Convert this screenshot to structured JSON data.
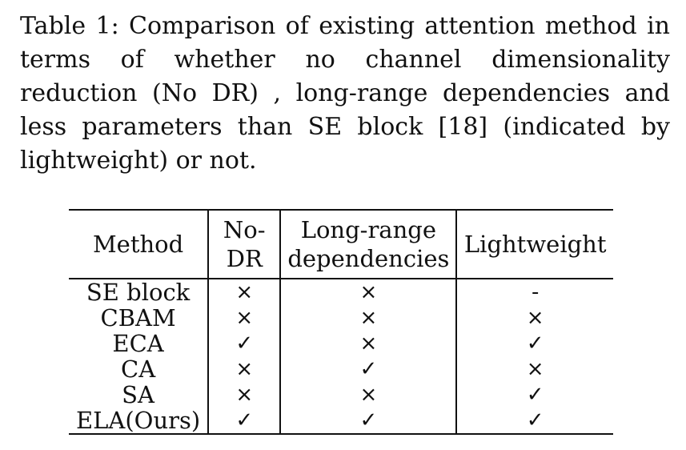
{
  "caption": {
    "text": "Table 1: Comparison of existing attention method in terms of whether no channel dimensionality reduction (No DR) , long-range dependencies and less parameters than SE block [18] (indicated by lightweight) or not."
  },
  "table": {
    "headers": {
      "method": "Method",
      "no_dr": "No-DR",
      "long_range_line1": "Long-range",
      "long_range_line2": "dependencies",
      "lightweight": "Lightweight"
    },
    "rows": [
      {
        "method": "SE block",
        "no_dr": "×",
        "long_range": "×",
        "lightweight": "-"
      },
      {
        "method": "CBAM",
        "no_dr": "×",
        "long_range": "×",
        "lightweight": "×"
      },
      {
        "method": "ECA",
        "no_dr": "✓",
        "long_range": "×",
        "lightweight": "✓"
      },
      {
        "method": "CA",
        "no_dr": "×",
        "long_range": "✓",
        "lightweight": "×"
      },
      {
        "method": "SA",
        "no_dr": "×",
        "long_range": "×",
        "lightweight": "✓"
      },
      {
        "method": "ELA(Ours)",
        "no_dr": "✓",
        "long_range": "✓",
        "lightweight": "✓"
      }
    ]
  }
}
